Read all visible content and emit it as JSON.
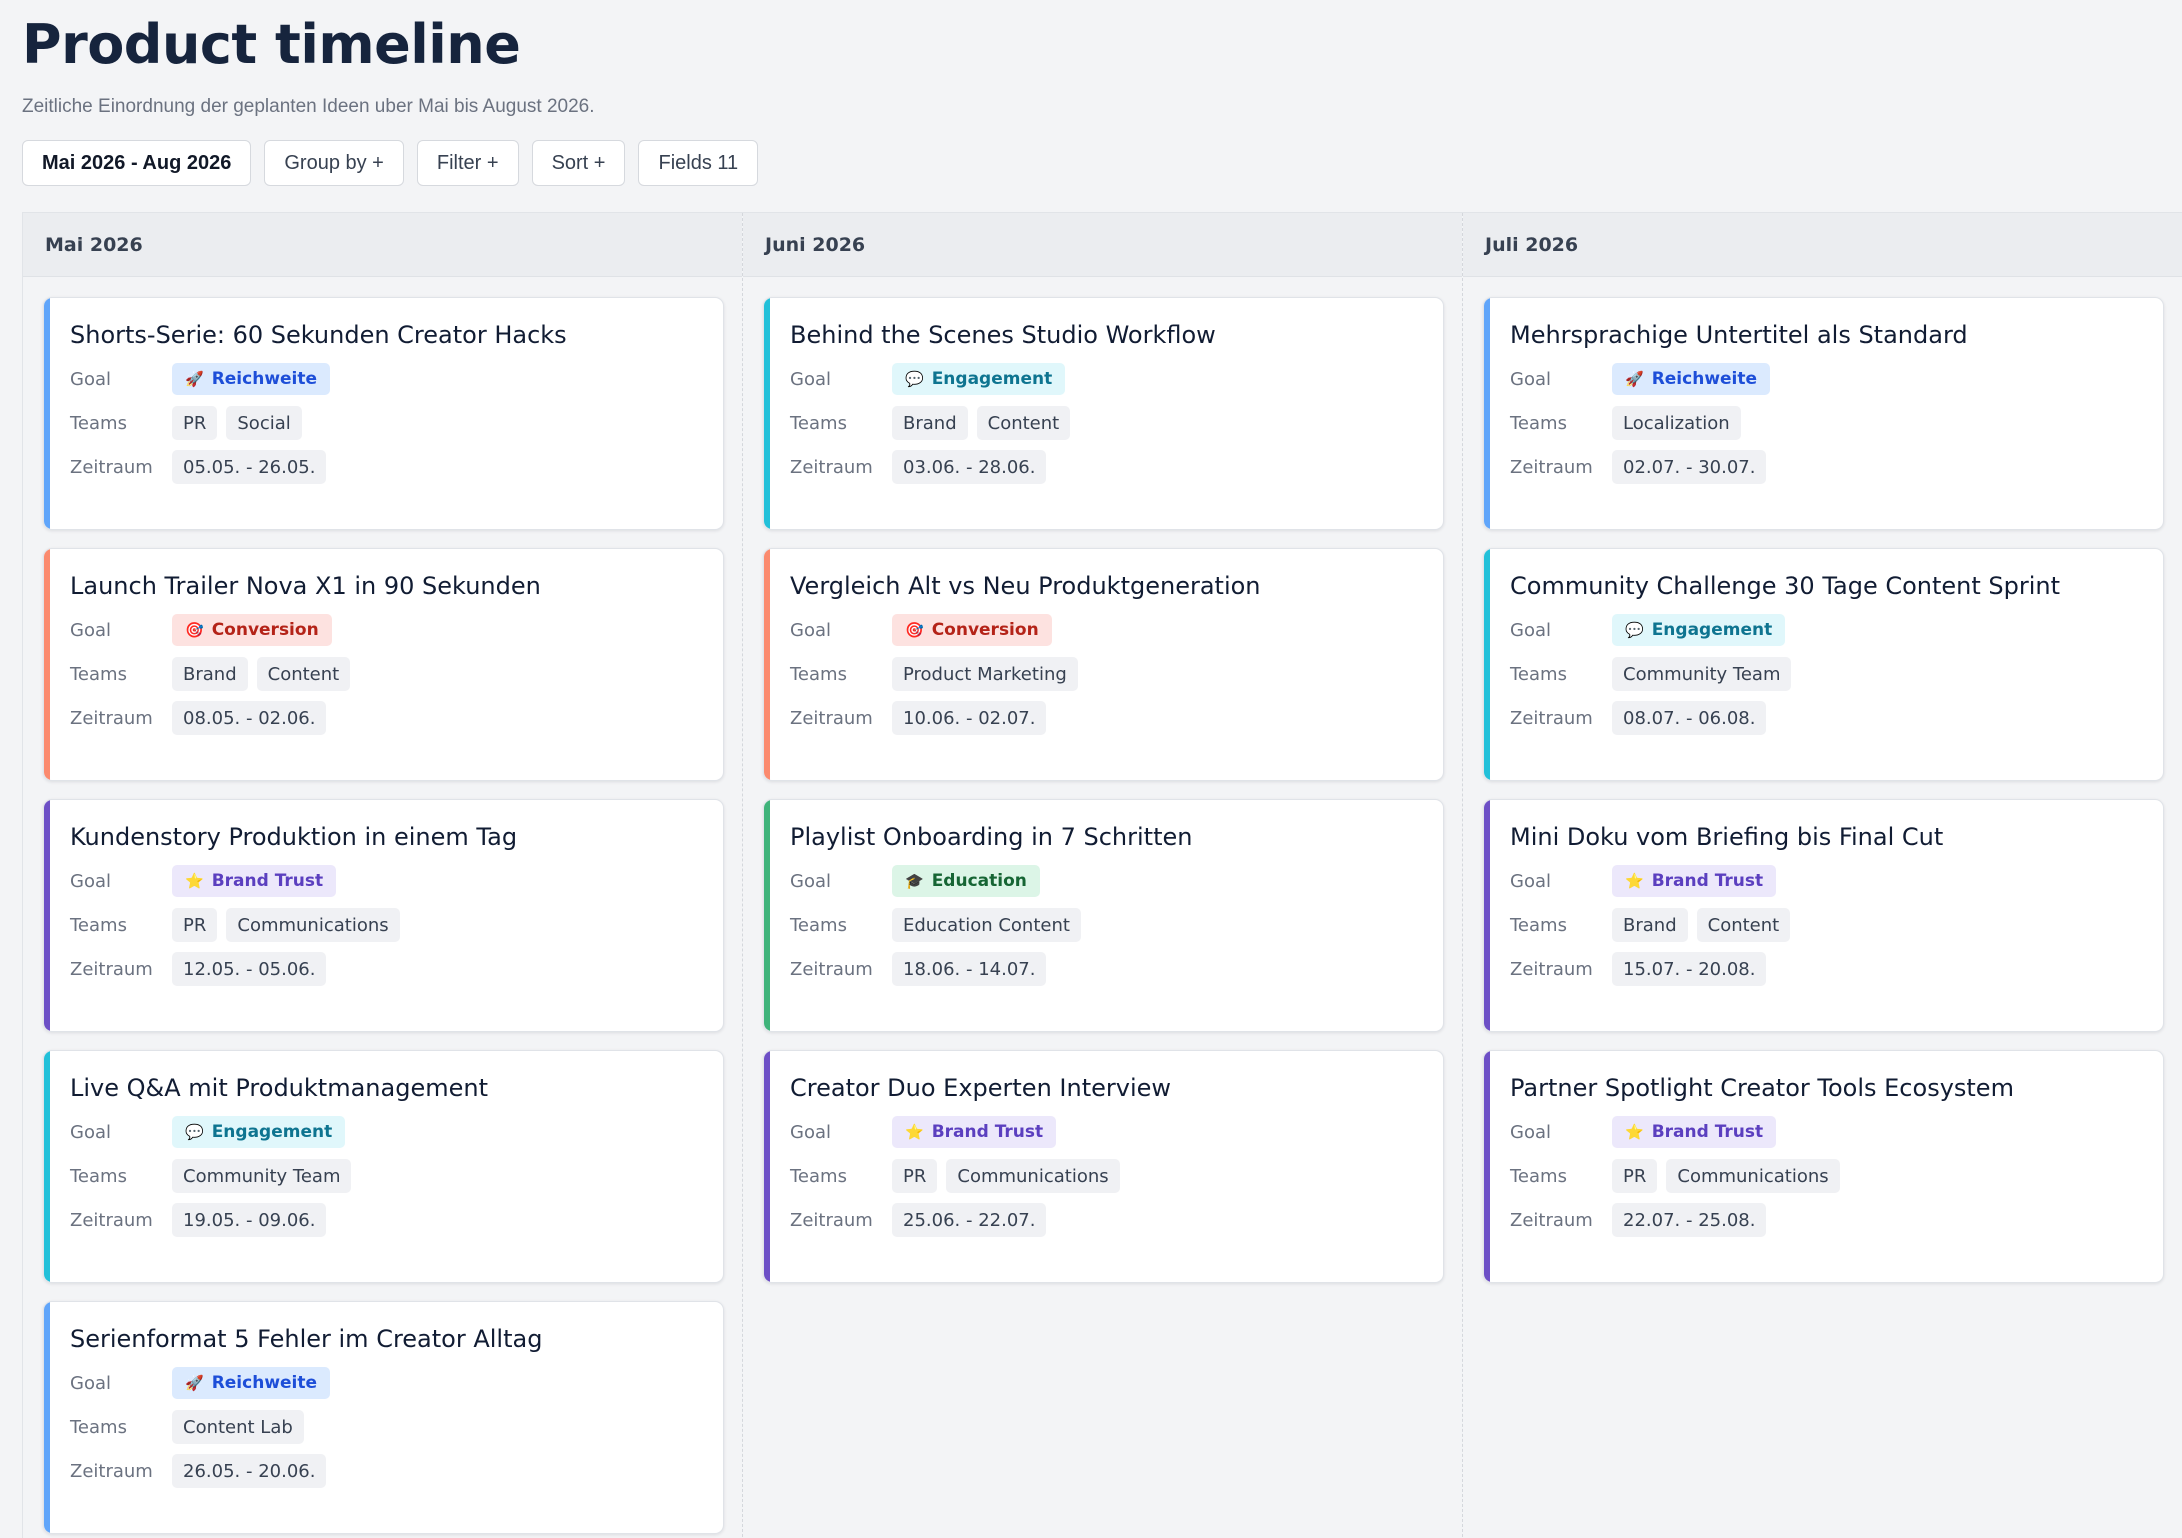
{
  "page": {
    "title": "Product timeline",
    "subtitle": "Zeitliche Einordnung der geplanten Ideen uber Mai bis August 2026."
  },
  "toolbar": {
    "range": "Mai 2026 - Aug 2026",
    "group": "Group by +",
    "filter": "Filter +",
    "sort": "Sort +",
    "fields": "Fields 11"
  },
  "labels": {
    "goal": "Goal",
    "teams": "Teams",
    "zeitraum": "Zeitraum"
  },
  "goals": {
    "Reichweite": {
      "icon": "rocket-icon",
      "glyph": "🚀",
      "bg": "#dbeafe",
      "fg": "#1d4ed8",
      "accent": "#60a5fa"
    },
    "Engagement": {
      "icon": "speech-bubble-icon",
      "glyph": "💬",
      "bg": "#e0f7fb",
      "fg": "#0e7490",
      "accent": "#22c0d9"
    },
    "Conversion": {
      "icon": "target-icon",
      "glyph": "🎯",
      "bg": "#fde2e0",
      "fg": "#b42318",
      "accent": "#fb8a6e"
    },
    "Brand Trust": {
      "icon": "star-icon",
      "glyph": "⭐",
      "bg": "#ece8fb",
      "fg": "#5b3fbf",
      "accent": "#6d4fc6"
    },
    "Education": {
      "icon": "graduation-cap-icon",
      "glyph": "🎓",
      "bg": "#dcf5e7",
      "fg": "#166534",
      "accent": "#3fb37a"
    }
  },
  "columns": [
    {
      "month": "Mai 2026",
      "cards": [
        {
          "title": "Shorts-Serie: 60 Sekunden Creator Hacks",
          "goal": "Reichweite",
          "teams": [
            "PR",
            "Social"
          ],
          "zeitraum": "05.05. - 26.05."
        },
        {
          "title": "Launch Trailer Nova X1 in 90 Sekunden",
          "goal": "Conversion",
          "teams": [
            "Brand",
            "Content"
          ],
          "zeitraum": "08.05. - 02.06."
        },
        {
          "title": "Kundenstory Produktion in einem Tag",
          "goal": "Brand Trust",
          "teams": [
            "PR",
            "Communications"
          ],
          "zeitraum": "12.05. - 05.06."
        },
        {
          "title": "Live Q&A mit Produktmanagement",
          "goal": "Engagement",
          "teams": [
            "Community Team"
          ],
          "zeitraum": "19.05. - 09.06."
        },
        {
          "title": "Serienformat 5 Fehler im Creator Alltag",
          "goal": "Reichweite",
          "teams": [
            "Content Lab"
          ],
          "zeitraum": "26.05. - 20.06."
        }
      ]
    },
    {
      "month": "Juni 2026",
      "cards": [
        {
          "title": "Behind the Scenes Studio Workflow",
          "goal": "Engagement",
          "teams": [
            "Brand",
            "Content"
          ],
          "zeitraum": "03.06. - 28.06."
        },
        {
          "title": "Vergleich Alt vs Neu Produktgeneration",
          "goal": "Conversion",
          "teams": [
            "Product Marketing"
          ],
          "zeitraum": "10.06. - 02.07."
        },
        {
          "title": "Playlist Onboarding in 7 Schritten",
          "goal": "Education",
          "teams": [
            "Education Content"
          ],
          "zeitraum": "18.06. - 14.07."
        },
        {
          "title": "Creator Duo Experten Interview",
          "goal": "Brand Trust",
          "teams": [
            "PR",
            "Communications"
          ],
          "zeitraum": "25.06. - 22.07."
        }
      ]
    },
    {
      "month": "Juli 2026",
      "cards": [
        {
          "title": "Mehrsprachige Untertitel als Standard",
          "goal": "Reichweite",
          "teams": [
            "Localization"
          ],
          "zeitraum": "02.07. - 30.07."
        },
        {
          "title": "Community Challenge 30 Tage Content Sprint",
          "goal": "Engagement",
          "teams": [
            "Community Team"
          ],
          "zeitraum": "08.07. - 06.08."
        },
        {
          "title": "Mini Doku vom Briefing bis Final Cut",
          "goal": "Brand Trust",
          "teams": [
            "Brand",
            "Content"
          ],
          "zeitraum": "15.07. - 20.08."
        },
        {
          "title": "Partner Spotlight Creator Tools Ecosystem",
          "goal": "Brand Trust",
          "teams": [
            "PR",
            "Communications"
          ],
          "zeitraum": "22.07. - 25.08."
        }
      ]
    }
  ]
}
